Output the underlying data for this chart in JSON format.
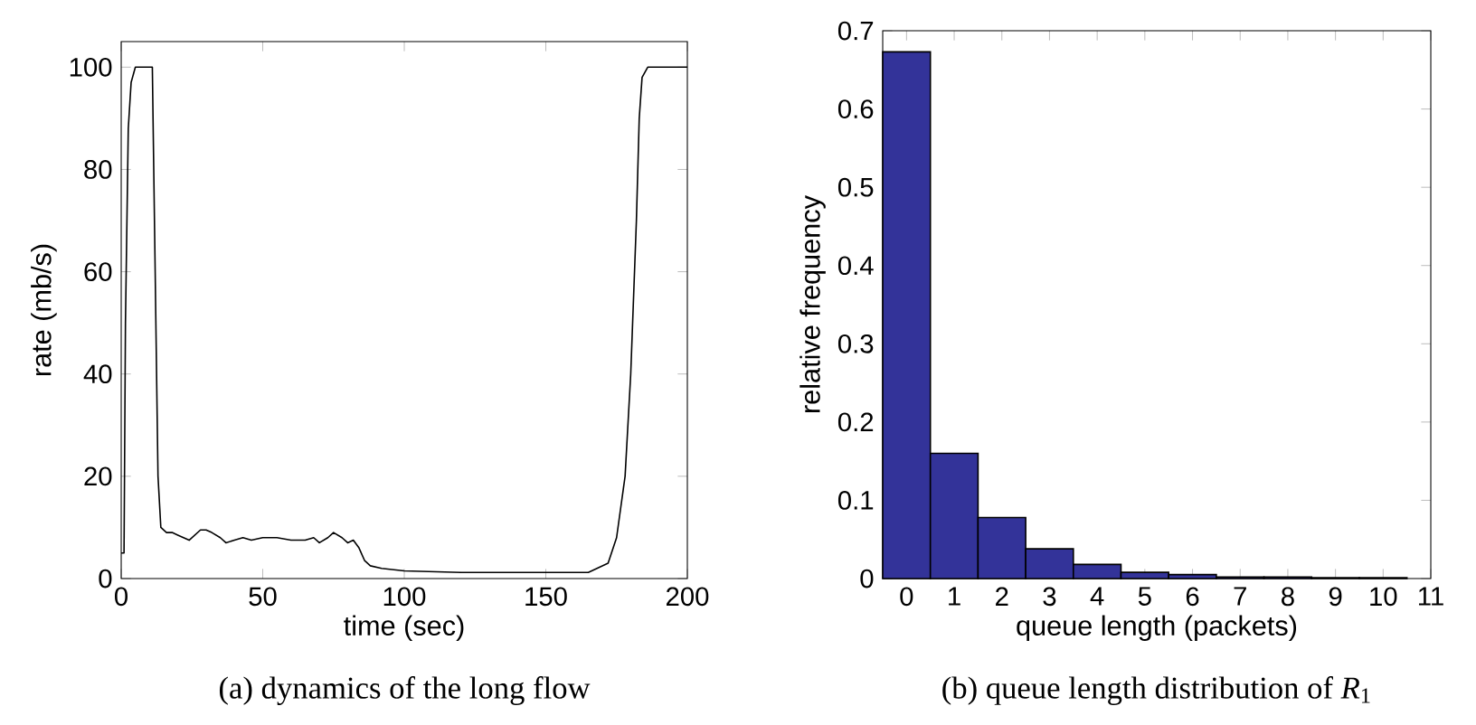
{
  "chart_data": [
    {
      "type": "line",
      "xlabel": "time (sec)",
      "ylabel": "rate (mb/s)",
      "annotations": [
        "(a) dynamics of the long flow"
      ],
      "x": [
        0,
        1,
        1.5,
        2.5,
        3.5,
        5,
        11,
        12,
        13,
        14,
        16,
        18,
        20,
        22,
        24,
        26,
        28,
        30,
        32,
        35,
        37,
        40,
        43,
        46,
        50,
        55,
        60,
        65,
        68,
        70,
        73,
        75,
        78,
        80,
        82,
        84,
        86,
        88,
        92,
        100,
        120,
        150,
        165,
        172,
        175,
        178,
        180,
        182,
        183,
        184,
        186,
        200
      ],
      "series": [
        {
          "color": "#000000",
          "values": [
            5,
            5,
            50,
            88,
            97,
            100,
            100,
            60,
            20,
            10,
            9,
            9,
            8.5,
            8,
            7.5,
            8.5,
            9.5,
            9.5,
            9,
            8,
            7,
            7.5,
            8,
            7.5,
            8,
            8,
            7.5,
            7.5,
            8,
            7,
            8,
            9,
            8,
            7,
            7.5,
            6,
            3.5,
            2.5,
            2,
            1.5,
            1.2,
            1.2,
            1.2,
            3,
            8,
            20,
            40,
            70,
            90,
            98,
            100,
            100
          ]
        }
      ],
      "xlim": [
        0,
        200
      ],
      "ylim": [
        0,
        105
      ],
      "xticks": [
        0,
        50,
        100,
        150,
        200
      ],
      "yticks": [
        0,
        20,
        40,
        60,
        80,
        100
      ]
    },
    {
      "type": "histogram",
      "xlabel": "queue length (packets)",
      "ylabel": "relative frequency",
      "annotations": [
        "(b) queue length distribution of *R*$_{1}$"
      ],
      "bins": [
        -0.5,
        0.5,
        1.5,
        2.5,
        3.5,
        4.5,
        5.5,
        6.5,
        7.5,
        8.5,
        9.5,
        10.5
      ],
      "values": [
        0.673,
        0.16,
        0.078,
        0.038,
        0.018,
        0.008,
        0.005,
        0.002,
        0.002,
        0.001,
        0.001
      ],
      "color": "#333399",
      "xlim": [
        -0.5,
        11
      ],
      "ylim": [
        0,
        0.7
      ],
      "xticks": [
        0,
        1,
        2,
        3,
        4,
        5,
        6,
        7,
        8,
        9,
        10,
        11
      ],
      "yticks": [
        0,
        0.1,
        0.2,
        0.3,
        0.4,
        0.5,
        0.6,
        0.7
      ]
    }
  ]
}
